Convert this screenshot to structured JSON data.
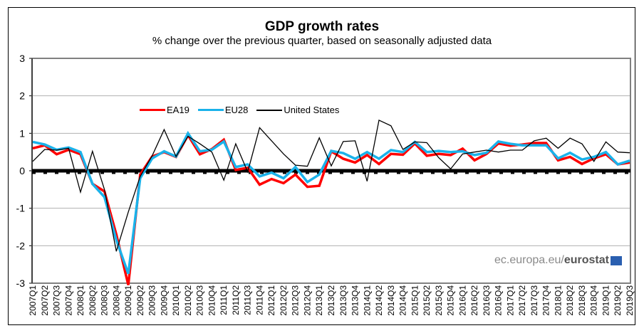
{
  "chart_data": {
    "type": "line",
    "title": "GDP growth rates",
    "subtitle": "% change over the previous quarter, based on seasonally adjusted data",
    "xlabel": "",
    "ylabel": "",
    "ylim": [
      -3,
      3
    ],
    "yticks": [
      3,
      2,
      1,
      0,
      -1,
      -2,
      -3
    ],
    "grid": true,
    "legend_position": "top-left",
    "categories": [
      "2007Q1",
      "2007Q2",
      "2007Q3",
      "2007Q4",
      "2008Q1",
      "2008Q2",
      "2008Q3",
      "2008Q4",
      "2009Q1",
      "2009Q2",
      "2009Q3",
      "2009Q4",
      "2010Q1",
      "2010Q2",
      "2010Q3",
      "2010Q4",
      "2011Q1",
      "2011Q2",
      "2011Q3",
      "2011Q4",
      "2012Q1",
      "2012Q2",
      "2012Q3",
      "2012Q4",
      "2013Q1",
      "2013Q2",
      "2013Q3",
      "2013Q4",
      "2014Q1",
      "2014Q2",
      "2014Q3",
      "2014Q4",
      "2015Q1",
      "2015Q2",
      "2015Q3",
      "2015Q4",
      "2016Q1",
      "2016Q2",
      "2016Q3",
      "2016Q4",
      "2017Q1",
      "2017Q2",
      "2017Q3",
      "2017Q4",
      "2018Q1",
      "2018Q2",
      "2018Q3",
      "2018Q4",
      "2019Q1",
      "2019Q2",
      "2019Q3"
    ],
    "series": [
      {
        "name": "EA19",
        "color": "#ff0000",
        "values": [
          0.6,
          0.68,
          0.44,
          0.56,
          0.44,
          -0.35,
          -0.55,
          -1.7,
          -3.05,
          -0.1,
          0.38,
          0.5,
          0.37,
          0.95,
          0.44,
          0.58,
          0.83,
          0.02,
          0.08,
          -0.37,
          -0.22,
          -0.33,
          -0.1,
          -0.43,
          -0.4,
          0.52,
          0.32,
          0.22,
          0.42,
          0.18,
          0.45,
          0.43,
          0.73,
          0.4,
          0.45,
          0.42,
          0.59,
          0.28,
          0.45,
          0.73,
          0.67,
          0.7,
          0.74,
          0.74,
          0.28,
          0.37,
          0.18,
          0.33,
          0.44,
          0.17,
          0.22
        ]
      },
      {
        "name": "EU28",
        "color": "#1ab2ea",
        "values": [
          0.77,
          0.7,
          0.56,
          0.62,
          0.5,
          -0.35,
          -0.7,
          -1.85,
          -2.75,
          -0.2,
          0.33,
          0.52,
          0.38,
          1.0,
          0.52,
          0.56,
          0.78,
          0.1,
          0.17,
          -0.15,
          -0.05,
          -0.2,
          0.1,
          -0.3,
          -0.1,
          0.53,
          0.47,
          0.32,
          0.5,
          0.32,
          0.55,
          0.5,
          0.77,
          0.5,
          0.53,
          0.5,
          0.52,
          0.42,
          0.48,
          0.78,
          0.72,
          0.68,
          0.68,
          0.68,
          0.33,
          0.48,
          0.3,
          0.37,
          0.5,
          0.17,
          0.27
        ]
      },
      {
        "name": "United States",
        "color": "#000000",
        "values": [
          0.25,
          0.57,
          0.55,
          0.6,
          -0.57,
          0.52,
          -0.5,
          -2.15,
          -1.1,
          -0.15,
          0.4,
          1.1,
          0.38,
          0.92,
          0.72,
          0.5,
          -0.25,
          0.72,
          -0.03,
          1.15,
          0.8,
          0.45,
          0.15,
          0.12,
          0.88,
          0.13,
          0.78,
          0.8,
          -0.28,
          1.35,
          1.2,
          0.57,
          0.77,
          0.75,
          0.35,
          0.05,
          0.45,
          0.5,
          0.55,
          0.5,
          0.55,
          0.55,
          0.8,
          0.87,
          0.6,
          0.87,
          0.72,
          0.25,
          0.77,
          0.5,
          0.48
        ]
      }
    ]
  },
  "legend": [
    "EA19",
    "EU28",
    "United States"
  ],
  "footer": {
    "source_prefix": "ec.europa.eu/",
    "source_brand": "eurostat"
  }
}
